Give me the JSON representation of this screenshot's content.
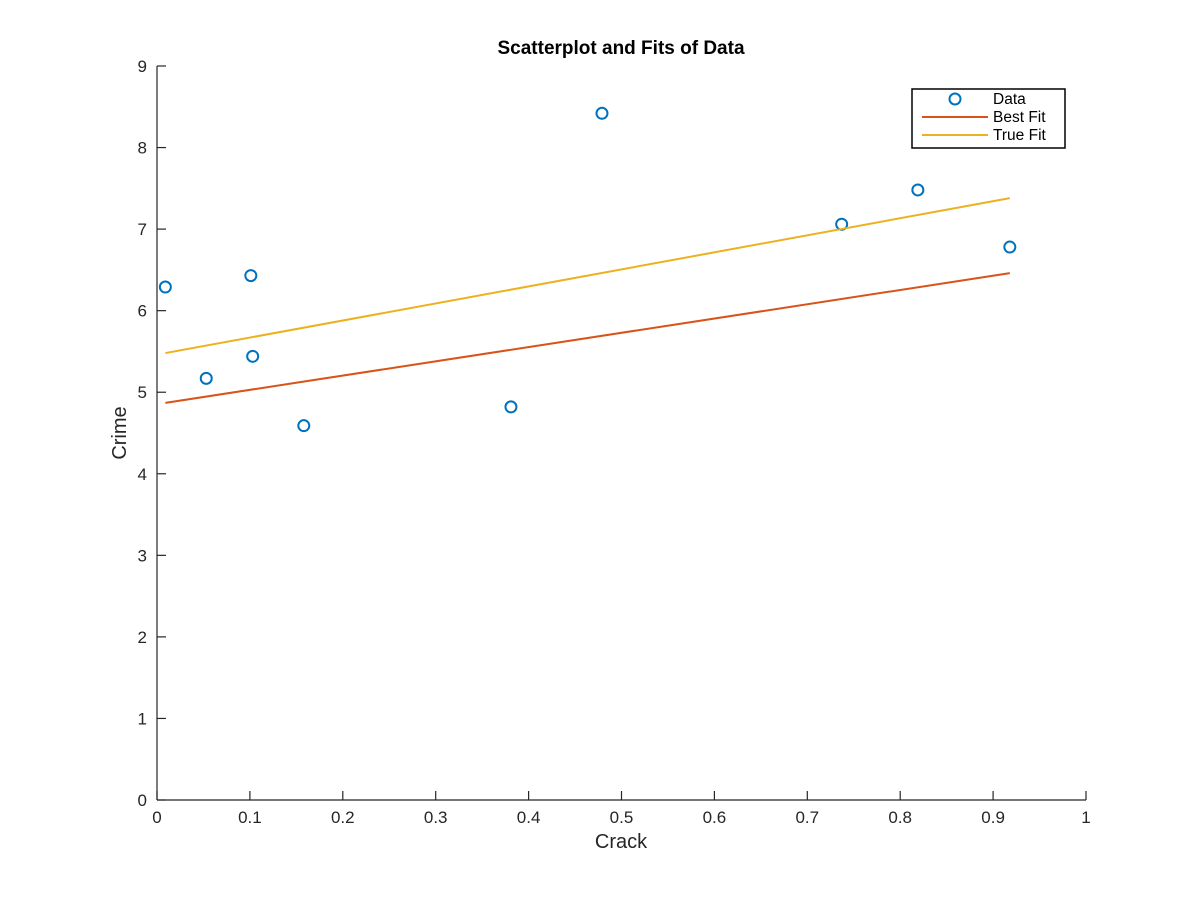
{
  "chart_data": {
    "type": "scatter",
    "title": "Scatterplot and Fits of Data",
    "xlabel": "Crack",
    "ylabel": "Crime",
    "xlim": [
      0,
      1
    ],
    "ylim": [
      0,
      9
    ],
    "xticks": [
      "0",
      "0.1",
      "0.2",
      "0.3",
      "0.4",
      "0.5",
      "0.6",
      "0.7",
      "0.8",
      "0.9",
      "1"
    ],
    "yticks": [
      "0",
      "1",
      "2",
      "3",
      "4",
      "5",
      "6",
      "7",
      "8",
      "9"
    ],
    "grid": false,
    "legend_position": "top-right",
    "series": [
      {
        "name": "Data",
        "kind": "scatter",
        "marker": "circle-open",
        "color": "#0072BD",
        "x": [
          0.009,
          0.053,
          0.101,
          0.103,
          0.158,
          0.381,
          0.479,
          0.737,
          0.819,
          0.918
        ],
        "y": [
          6.29,
          5.17,
          6.43,
          5.44,
          4.59,
          4.82,
          8.42,
          7.06,
          7.48,
          6.78
        ]
      },
      {
        "name": "Best Fit",
        "kind": "line",
        "color": "#D95319",
        "x": [
          0.009,
          0.918
        ],
        "y": [
          4.87,
          6.46
        ]
      },
      {
        "name": "True Fit",
        "kind": "line",
        "color": "#EDB120",
        "x": [
          0.009,
          0.918
        ],
        "y": [
          5.48,
          7.38
        ]
      }
    ]
  }
}
